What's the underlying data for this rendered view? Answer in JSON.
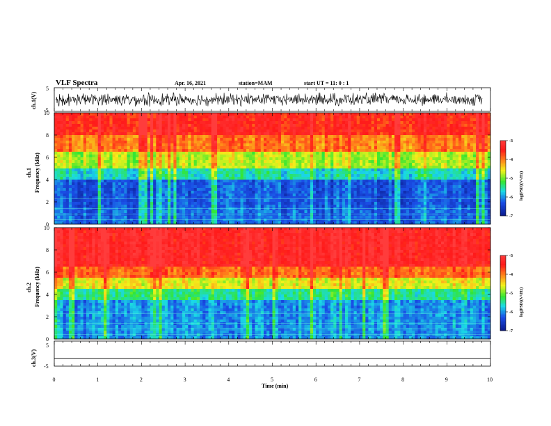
{
  "header": {
    "title": "VLF Spectra",
    "date": "Apr. 16, 2021",
    "station": "station=MAM",
    "start": "start UT =  11: 0 : 1"
  },
  "colors": {
    "red": "#ff1a1a",
    "orange": "#ff8c1a",
    "yellow": "#f2f21a",
    "green": "#33e633",
    "cyan": "#1ad9e6",
    "blue": "#1a4de6",
    "navy": "#0a1a8c"
  },
  "chart_data": [
    {
      "type": "line",
      "name": "ch1-waveform",
      "ylabel": "ch.1(V)",
      "ylim": [
        -5,
        5
      ],
      "yticks": [
        "5",
        "-5"
      ],
      "xlim": [
        0,
        10
      ],
      "description_level": "noise oscillating roughly between -3 and +3 V"
    },
    {
      "type": "heatmap",
      "name": "ch1-spectrogram",
      "ylabel_top": "ch.1",
      "ylabel": "Frequency (kHz)",
      "ylim": [
        0,
        10
      ],
      "yticks": [
        "0",
        "2",
        "4",
        "6",
        "8",
        "10"
      ],
      "xlim": [
        0,
        10
      ],
      "colorbar_label": "log(PSD)(V²/Hz)",
      "colorbar_ticks": [
        "-3",
        "-4",
        "-5",
        "-6",
        "-7"
      ],
      "colorbar_range": [
        -7,
        -3
      ],
      "bands": [
        {
          "from": 0,
          "to": 1.5,
          "level": -6.2
        },
        {
          "from": 1.5,
          "to": 4,
          "level": -6.3
        },
        {
          "from": 4,
          "to": 5,
          "level": -5.6
        },
        {
          "from": 5,
          "to": 6.5,
          "level": -4.8
        },
        {
          "from": 6.5,
          "to": 8,
          "level": -4.0
        },
        {
          "from": 8,
          "to": 10,
          "level": -3.5
        }
      ]
    },
    {
      "type": "heatmap",
      "name": "ch2-spectrogram",
      "ylabel_top": "ch.2",
      "ylabel": "Frequency (kHz)",
      "ylim": [
        0,
        10
      ],
      "yticks": [
        "0",
        "2",
        "4",
        "6",
        "8",
        "10"
      ],
      "xlim": [
        0,
        10
      ],
      "colorbar_label": "log(PSD)(V²/Hz)",
      "colorbar_ticks": [
        "-3",
        "-4",
        "-5",
        "-6",
        "-7"
      ],
      "colorbar_range": [
        -7,
        -3
      ],
      "bands": [
        {
          "from": 0,
          "to": 1.5,
          "level": -6.0
        },
        {
          "from": 1.5,
          "to": 3.5,
          "level": -6.0
        },
        {
          "from": 3.5,
          "to": 4.5,
          "level": -5.4
        },
        {
          "from": 4.5,
          "to": 5.5,
          "level": -4.6
        },
        {
          "from": 5.5,
          "to": 6.5,
          "level": -3.9
        },
        {
          "from": 6.5,
          "to": 10,
          "level": -3.3
        }
      ]
    },
    {
      "type": "line",
      "name": "ch3-waveform",
      "ylabel": "ch.3(V)",
      "ylim": [
        -5,
        5
      ],
      "yticks": [
        "5",
        "-5"
      ],
      "xlim": [
        0,
        10
      ],
      "value": -2,
      "xlabel": "Time (min)",
      "xticks": [
        "0",
        "1",
        "2",
        "3",
        "4",
        "5",
        "6",
        "7",
        "8",
        "9",
        "10"
      ]
    }
  ]
}
